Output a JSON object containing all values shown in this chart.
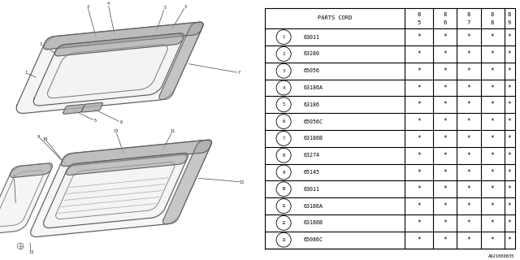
{
  "footnote": "A621000035",
  "rows": [
    {
      "num": "1",
      "part": "63011",
      "marks": [
        "*",
        "*",
        "*",
        "*",
        "*"
      ]
    },
    {
      "num": "2",
      "part": "63280",
      "marks": [
        "*",
        "*",
        "*",
        "*",
        "*"
      ]
    },
    {
      "num": "3",
      "part": "65056",
      "marks": [
        "*",
        "*",
        "*",
        "*",
        "*"
      ]
    },
    {
      "num": "4",
      "part": "63186A",
      "marks": [
        "*",
        "*",
        "*",
        "*",
        "*"
      ]
    },
    {
      "num": "5",
      "part": "63186",
      "marks": [
        "*",
        "*",
        "*",
        "*",
        "*"
      ]
    },
    {
      "num": "6",
      "part": "65056C",
      "marks": [
        "*",
        "*",
        "*",
        "*",
        "*"
      ]
    },
    {
      "num": "7",
      "part": "63186B",
      "marks": [
        "*",
        "*",
        "*",
        "*",
        "*"
      ]
    },
    {
      "num": "8",
      "part": "63274",
      "marks": [
        "*",
        "*",
        "*",
        "*",
        "*"
      ]
    },
    {
      "num": "9",
      "part": "65145",
      "marks": [
        "*",
        "*",
        "*",
        "*",
        "*"
      ]
    },
    {
      "num": "10",
      "part": "63011",
      "marks": [
        "*",
        "*",
        "*",
        "*",
        "*"
      ]
    },
    {
      "num": "11",
      "part": "63186A",
      "marks": [
        "*",
        "*",
        "*",
        "*",
        "*"
      ]
    },
    {
      "num": "12",
      "part": "63186B",
      "marks": [
        "*",
        "*",
        "*",
        "*",
        "*"
      ]
    },
    {
      "num": "13",
      "part": "65086C",
      "marks": [
        "*",
        "*",
        "*",
        "*",
        "*"
      ]
    }
  ],
  "bg_color": "#ffffff",
  "line_color": "#000000",
  "text_color": "#000000",
  "gray_fill": "#aaaaaa",
  "light_gray": "#cccccc"
}
